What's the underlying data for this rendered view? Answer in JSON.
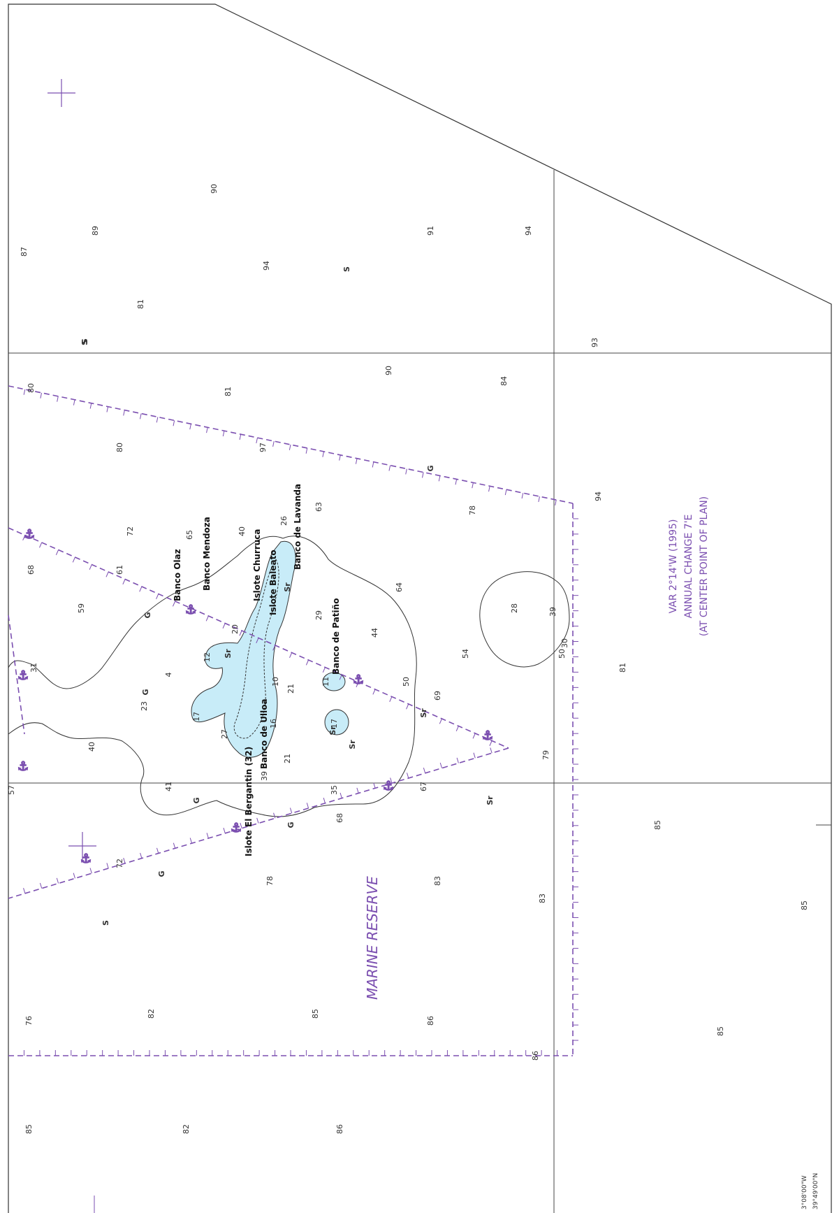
{
  "chart": {
    "variation_lines": [
      "VAR 2°14'W (1995)",
      "ANNUAL CHANGE 7'E",
      "(AT CENTER POINT OF PLAN)"
    ],
    "reserve_label": "MARINE RESERVE",
    "coord_1": "39°49'00\"N",
    "coord_2": "3°08'00\"W",
    "colors": {
      "shoal": "#c8ecf8",
      "reserve": "#7b4fb0",
      "ink": "#333333"
    }
  },
  "features": [
    {
      "name": "Banco Olaz"
    },
    {
      "name": "Banco Mendoza"
    },
    {
      "name": "Islote Churruca"
    },
    {
      "name": "Islote Baleato"
    },
    {
      "name": "Banco de Lavanda"
    },
    {
      "name": "Banco de Patiño"
    },
    {
      "name": "Islote El Bergantin (32)"
    },
    {
      "name": "Banco de Ulloa"
    }
  ],
  "soundings": [
    {
      "v": "87"
    },
    {
      "v": "89"
    },
    {
      "v": "90"
    },
    {
      "v": "91"
    },
    {
      "v": "94"
    },
    {
      "v": "94"
    },
    {
      "v": "81"
    },
    {
      "v": "S"
    },
    {
      "v": "S"
    },
    {
      "v": "93"
    },
    {
      "v": "80"
    },
    {
      "v": "81"
    },
    {
      "v": "90"
    },
    {
      "v": "84"
    },
    {
      "v": "80"
    },
    {
      "v": "97"
    },
    {
      "v": "G"
    },
    {
      "v": "78"
    },
    {
      "v": "94"
    },
    {
      "v": "72"
    },
    {
      "v": "65"
    },
    {
      "v": "68"
    },
    {
      "v": "61"
    },
    {
      "v": "59"
    },
    {
      "v": "63"
    },
    {
      "v": "26"
    },
    {
      "v": "40"
    },
    {
      "v": "64"
    },
    {
      "v": "29"
    },
    {
      "v": "44"
    },
    {
      "v": "54"
    },
    {
      "v": "28"
    },
    {
      "v": "39"
    },
    {
      "v": "50"
    },
    {
      "v": "81"
    },
    {
      "v": "31"
    },
    {
      "v": "23"
    },
    {
      "v": "40"
    },
    {
      "v": "27"
    },
    {
      "v": "21"
    },
    {
      "v": "21"
    },
    {
      "v": "69"
    },
    {
      "v": "79"
    },
    {
      "v": "41"
    },
    {
      "v": "57"
    },
    {
      "v": "39"
    },
    {
      "v": "35"
    },
    {
      "v": "67"
    },
    {
      "v": "68"
    },
    {
      "v": "72"
    },
    {
      "v": "78"
    },
    {
      "v": "83"
    },
    {
      "v": "83"
    },
    {
      "v": "85"
    },
    {
      "v": "85"
    },
    {
      "v": "76"
    },
    {
      "v": "82"
    },
    {
      "v": "85"
    },
    {
      "v": "86"
    },
    {
      "v": "85"
    },
    {
      "v": "85"
    },
    {
      "v": "82"
    },
    {
      "v": "86"
    },
    {
      "v": "86"
    },
    {
      "v": "S"
    },
    {
      "v": "S"
    },
    {
      "v": "G"
    },
    {
      "v": "G"
    },
    {
      "v": "G"
    },
    {
      "v": "G"
    },
    {
      "v": "Sr"
    },
    {
      "v": "Sr"
    },
    {
      "v": "Sr"
    },
    {
      "v": "Sr"
    },
    {
      "v": "Sr"
    },
    {
      "v": "50"
    },
    {
      "v": "30"
    },
    {
      "v": "10"
    },
    {
      "v": "12"
    },
    {
      "v": "11"
    },
    {
      "v": "17"
    },
    {
      "v": "17"
    },
    {
      "v": "16"
    },
    {
      "v": "4"
    },
    {
      "v": "G"
    },
    {
      "v": "Sr"
    },
    {
      "v": "20"
    }
  ]
}
